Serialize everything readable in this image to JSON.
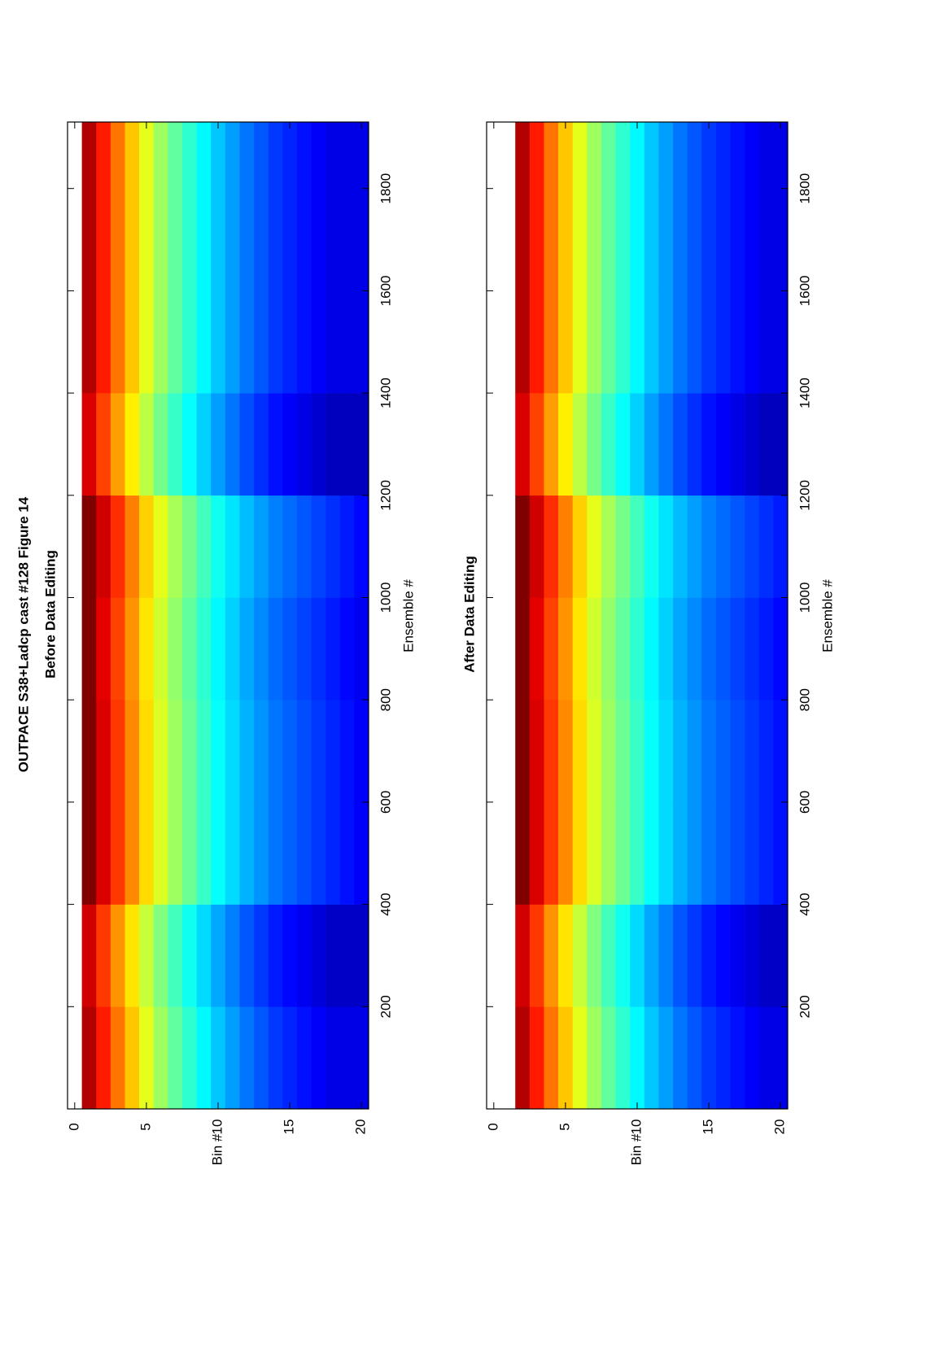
{
  "chart_data": [
    {
      "type": "heatmap",
      "title": "OUTPACE S38+Ladcp cast #128  Figure 14",
      "subtitle": "Before Data Editing",
      "xlabel": "Ensemble #",
      "ylabel": "Bin #",
      "colormap": "jet",
      "xlim": [
        0,
        1930
      ],
      "ylim": [
        20.5,
        -0.5
      ],
      "xticks": [
        200,
        400,
        600,
        800,
        1000,
        1200,
        1400,
        1600,
        1800
      ],
      "yticks": [
        0,
        5,
        10,
        15,
        20
      ],
      "x_edges": [
        0,
        200,
        400,
        600,
        800,
        1000,
        1200,
        1400,
        1600,
        1800,
        1930
      ],
      "bins": [
        1,
        2,
        3,
        4,
        5,
        6,
        7,
        8,
        9,
        10,
        11,
        12,
        13,
        14,
        15,
        16,
        17,
        18,
        19,
        20
      ],
      "z": [
        [
          0.95,
          0.92,
          1,
          1,
          1,
          1,
          0.91,
          0.95,
          0.95,
          0.95
        ],
        [
          0.85,
          0.82,
          0.91,
          0.91,
          0.9,
          0.92,
          0.81,
          0.85,
          0.85,
          0.85
        ],
        [
          0.76,
          0.73,
          0.82,
          0.82,
          0.81,
          0.83,
          0.72,
          0.76,
          0.76,
          0.76
        ],
        [
          0.68,
          0.65,
          0.74,
          0.74,
          0.73,
          0.75,
          0.64,
          0.68,
          0.68,
          0.68
        ],
        [
          0.6,
          0.57,
          0.66,
          0.66,
          0.65,
          0.67,
          0.56,
          0.6,
          0.6,
          0.6
        ],
        [
          0.53,
          0.5,
          0.59,
          0.59,
          0.58,
          0.6,
          0.49,
          0.53,
          0.53,
          0.53
        ],
        [
          0.47,
          0.44,
          0.53,
          0.53,
          0.52,
          0.54,
          0.43,
          0.47,
          0.47,
          0.47
        ],
        [
          0.42,
          0.39,
          0.48,
          0.48,
          0.47,
          0.49,
          0.38,
          0.42,
          0.42,
          0.42
        ],
        [
          0.37,
          0.34,
          0.43,
          0.43,
          0.42,
          0.44,
          0.33,
          0.37,
          0.37,
          0.37
        ],
        [
          0.32,
          0.29,
          0.38,
          0.38,
          0.37,
          0.39,
          0.28,
          0.32,
          0.32,
          0.32
        ],
        [
          0.28,
          0.25,
          0.34,
          0.34,
          0.33,
          0.35,
          0.24,
          0.28,
          0.28,
          0.28
        ],
        [
          0.24,
          0.21,
          0.3,
          0.3,
          0.29,
          0.31,
          0.2,
          0.24,
          0.24,
          0.24
        ],
        [
          0.21,
          0.18,
          0.27,
          0.27,
          0.26,
          0.28,
          0.17,
          0.21,
          0.21,
          0.21
        ],
        [
          0.18,
          0.15,
          0.24,
          0.24,
          0.23,
          0.25,
          0.14,
          0.18,
          0.18,
          0.18
        ],
        [
          0.16,
          0.13,
          0.22,
          0.22,
          0.21,
          0.23,
          0.12,
          0.16,
          0.16,
          0.16
        ],
        [
          0.14,
          0.11,
          0.2,
          0.2,
          0.19,
          0.21,
          0.1,
          0.14,
          0.14,
          0.14
        ],
        [
          0.12,
          0.09,
          0.18,
          0.18,
          0.17,
          0.19,
          0.08,
          0.12,
          0.12,
          0.12
        ],
        [
          0.1,
          0.07,
          0.16,
          0.16,
          0.15,
          0.17,
          0.06,
          0.1,
          0.1,
          0.1
        ],
        [
          0.1,
          0.07,
          0.14,
          0.14,
          0.13,
          0.15,
          0.06,
          0.1,
          0.1,
          0.1
        ],
        [
          0.1,
          0.07,
          0.12,
          0.12,
          0.11,
          0.13,
          0.06,
          0.1,
          0.1,
          0.1
        ]
      ]
    },
    {
      "type": "heatmap",
      "subtitle": "After Data Editing",
      "xlabel": "Ensemble #",
      "ylabel": "Bin #",
      "colormap": "jet",
      "xlim": [
        0,
        1930
      ],
      "ylim": [
        20.5,
        -0.5
      ],
      "xticks": [
        200,
        400,
        600,
        800,
        1000,
        1200,
        1400,
        1600,
        1800
      ],
      "yticks": [
        0,
        5,
        10,
        15,
        20
      ],
      "x_edges": [
        0,
        200,
        400,
        600,
        800,
        1000,
        1200,
        1400,
        1600,
        1800,
        1930
      ],
      "bins": [
        2,
        3,
        4,
        5,
        6,
        7,
        8,
        9,
        10,
        11,
        12,
        13,
        14,
        15,
        16,
        17,
        18,
        19,
        20
      ],
      "z": [
        [
          0.95,
          0.92,
          1,
          1,
          1,
          1,
          0.91,
          0.95,
          0.95,
          0.95
        ],
        [
          0.85,
          0.82,
          0.91,
          0.91,
          0.9,
          0.92,
          0.81,
          0.85,
          0.85,
          0.85
        ],
        [
          0.76,
          0.73,
          0.82,
          0.82,
          0.81,
          0.83,
          0.72,
          0.76,
          0.76,
          0.76
        ],
        [
          0.68,
          0.65,
          0.74,
          0.74,
          0.73,
          0.75,
          0.64,
          0.68,
          0.68,
          0.68
        ],
        [
          0.6,
          0.57,
          0.66,
          0.66,
          0.65,
          0.67,
          0.56,
          0.6,
          0.6,
          0.6
        ],
        [
          0.53,
          0.5,
          0.59,
          0.59,
          0.58,
          0.6,
          0.49,
          0.53,
          0.53,
          0.53
        ],
        [
          0.47,
          0.44,
          0.53,
          0.53,
          0.52,
          0.54,
          0.43,
          0.47,
          0.47,
          0.47
        ],
        [
          0.42,
          0.39,
          0.48,
          0.48,
          0.47,
          0.49,
          0.38,
          0.42,
          0.42,
          0.42
        ],
        [
          0.37,
          0.34,
          0.43,
          0.43,
          0.42,
          0.44,
          0.33,
          0.37,
          0.37,
          0.37
        ],
        [
          0.32,
          0.29,
          0.38,
          0.38,
          0.37,
          0.39,
          0.28,
          0.32,
          0.32,
          0.32
        ],
        [
          0.28,
          0.25,
          0.34,
          0.34,
          0.33,
          0.35,
          0.24,
          0.28,
          0.28,
          0.28
        ],
        [
          0.24,
          0.21,
          0.3,
          0.3,
          0.29,
          0.31,
          0.2,
          0.24,
          0.24,
          0.24
        ],
        [
          0.21,
          0.18,
          0.27,
          0.27,
          0.26,
          0.28,
          0.17,
          0.21,
          0.21,
          0.21
        ],
        [
          0.18,
          0.15,
          0.24,
          0.24,
          0.23,
          0.25,
          0.14,
          0.18,
          0.18,
          0.18
        ],
        [
          0.16,
          0.13,
          0.22,
          0.22,
          0.21,
          0.23,
          0.12,
          0.16,
          0.16,
          0.16
        ],
        [
          0.14,
          0.11,
          0.2,
          0.2,
          0.19,
          0.21,
          0.1,
          0.14,
          0.14,
          0.14
        ],
        [
          0.12,
          0.09,
          0.18,
          0.18,
          0.17,
          0.19,
          0.08,
          0.12,
          0.12,
          0.12
        ],
        [
          0.1,
          0.07,
          0.16,
          0.16,
          0.15,
          0.17,
          0.06,
          0.1,
          0.1,
          0.1
        ],
        [
          0.1,
          0.07,
          0.14,
          0.14,
          0.13,
          0.15,
          0.06,
          0.1,
          0.1,
          0.1
        ]
      ]
    }
  ]
}
